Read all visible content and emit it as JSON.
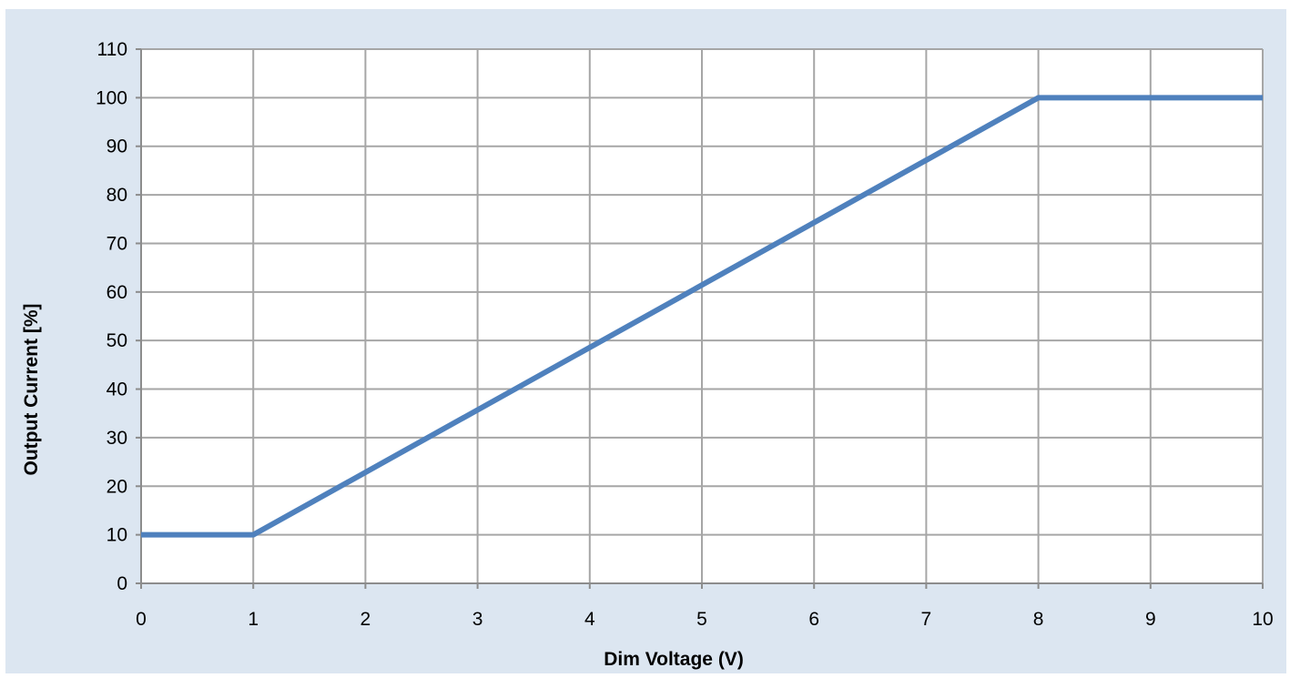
{
  "chart_data": {
    "type": "line",
    "title": "",
    "xlabel": "Dim Voltage (V)",
    "ylabel": "Output Current [%]",
    "xlim": [
      0,
      10
    ],
    "ylim": [
      0,
      110
    ],
    "x_ticks": [
      "0",
      "1",
      "2",
      "3",
      "4",
      "5",
      "6",
      "7",
      "8",
      "9",
      "10"
    ],
    "y_ticks": [
      "0",
      "10",
      "20",
      "30",
      "40",
      "50",
      "60",
      "70",
      "80",
      "90",
      "100",
      "110"
    ],
    "grid": true,
    "legend": "none",
    "series": [
      {
        "x": [
          0,
          1,
          8,
          10
        ],
        "y": [
          10,
          10,
          100,
          100
        ]
      }
    ]
  },
  "style": {
    "background_color": "#dce6f1",
    "plot_background_color": "#ffffff",
    "grid_color": "#a6a6a6",
    "axis_color": "#8c8c8c",
    "line_color": "#4f81bd"
  }
}
